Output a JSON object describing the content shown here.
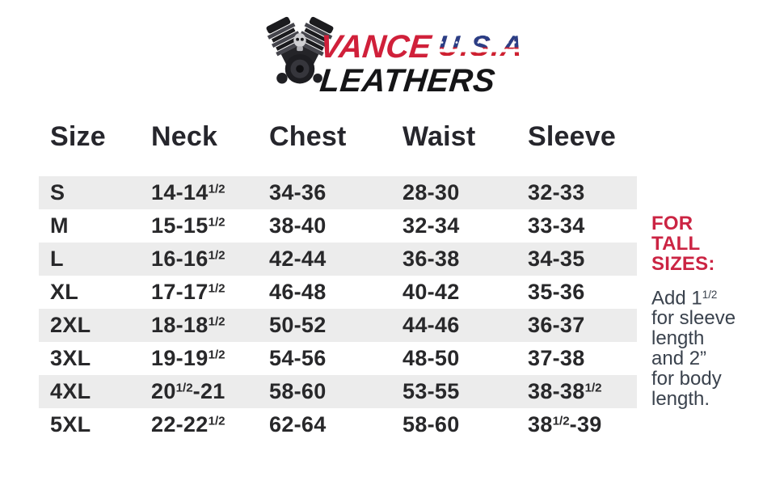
{
  "logo": {
    "brand_primary": "VANCE",
    "brand_usa": "U.S.A",
    "brand_secondary": "LEATHERS",
    "engine_icon": "v-twin-engine-skull-icon"
  },
  "colors": {
    "brand_red": "#d0203a",
    "flag_blue": "#2b3e85",
    "flag_stripe_red": "#ce2030",
    "note_heading_red": "#cb2443",
    "note_body_text": "#3a424d",
    "row_stripe_gray": "#ececec",
    "table_text": "#28282a"
  },
  "size_chart": {
    "columns": [
      "Size",
      "Neck",
      "Chest",
      "Waist",
      "Sleeve"
    ],
    "rows": [
      {
        "size": "S",
        "neck": "14-14^1/2^",
        "chest": "34-36",
        "waist": "28-30",
        "sleeve": "32-33"
      },
      {
        "size": "M",
        "neck": "15-15^1/2^",
        "chest": "38-40",
        "waist": "32-34",
        "sleeve": "33-34"
      },
      {
        "size": "L",
        "neck": "16-16^1/2^",
        "chest": "42-44",
        "waist": "36-38",
        "sleeve": "34-35"
      },
      {
        "size": "XL",
        "neck": "17-17^1/2^",
        "chest": "46-48",
        "waist": "40-42",
        "sleeve": "35-36"
      },
      {
        "size": "2XL",
        "neck": "18-18^1/2^",
        "chest": "50-52",
        "waist": "44-46",
        "sleeve": "36-37"
      },
      {
        "size": "3XL",
        "neck": "19-19^1/2^",
        "chest": "54-56",
        "waist": "48-50",
        "sleeve": "37-38"
      },
      {
        "size": "4XL",
        "neck": "20^1/2^-21",
        "chest": "58-60",
        "waist": "53-55",
        "sleeve": "38-38^1/2^"
      },
      {
        "size": "5XL",
        "neck": "22-22^1/2^",
        "chest": "62-64",
        "waist": "58-60",
        "sleeve": "38^1/2^-39"
      }
    ]
  },
  "tall_note": {
    "heading": "FOR\nTALL\nSIZES:",
    "body": "Add 1^1/2^\nfor sleeve\nlength\nand 2”\nfor body\nlength."
  }
}
